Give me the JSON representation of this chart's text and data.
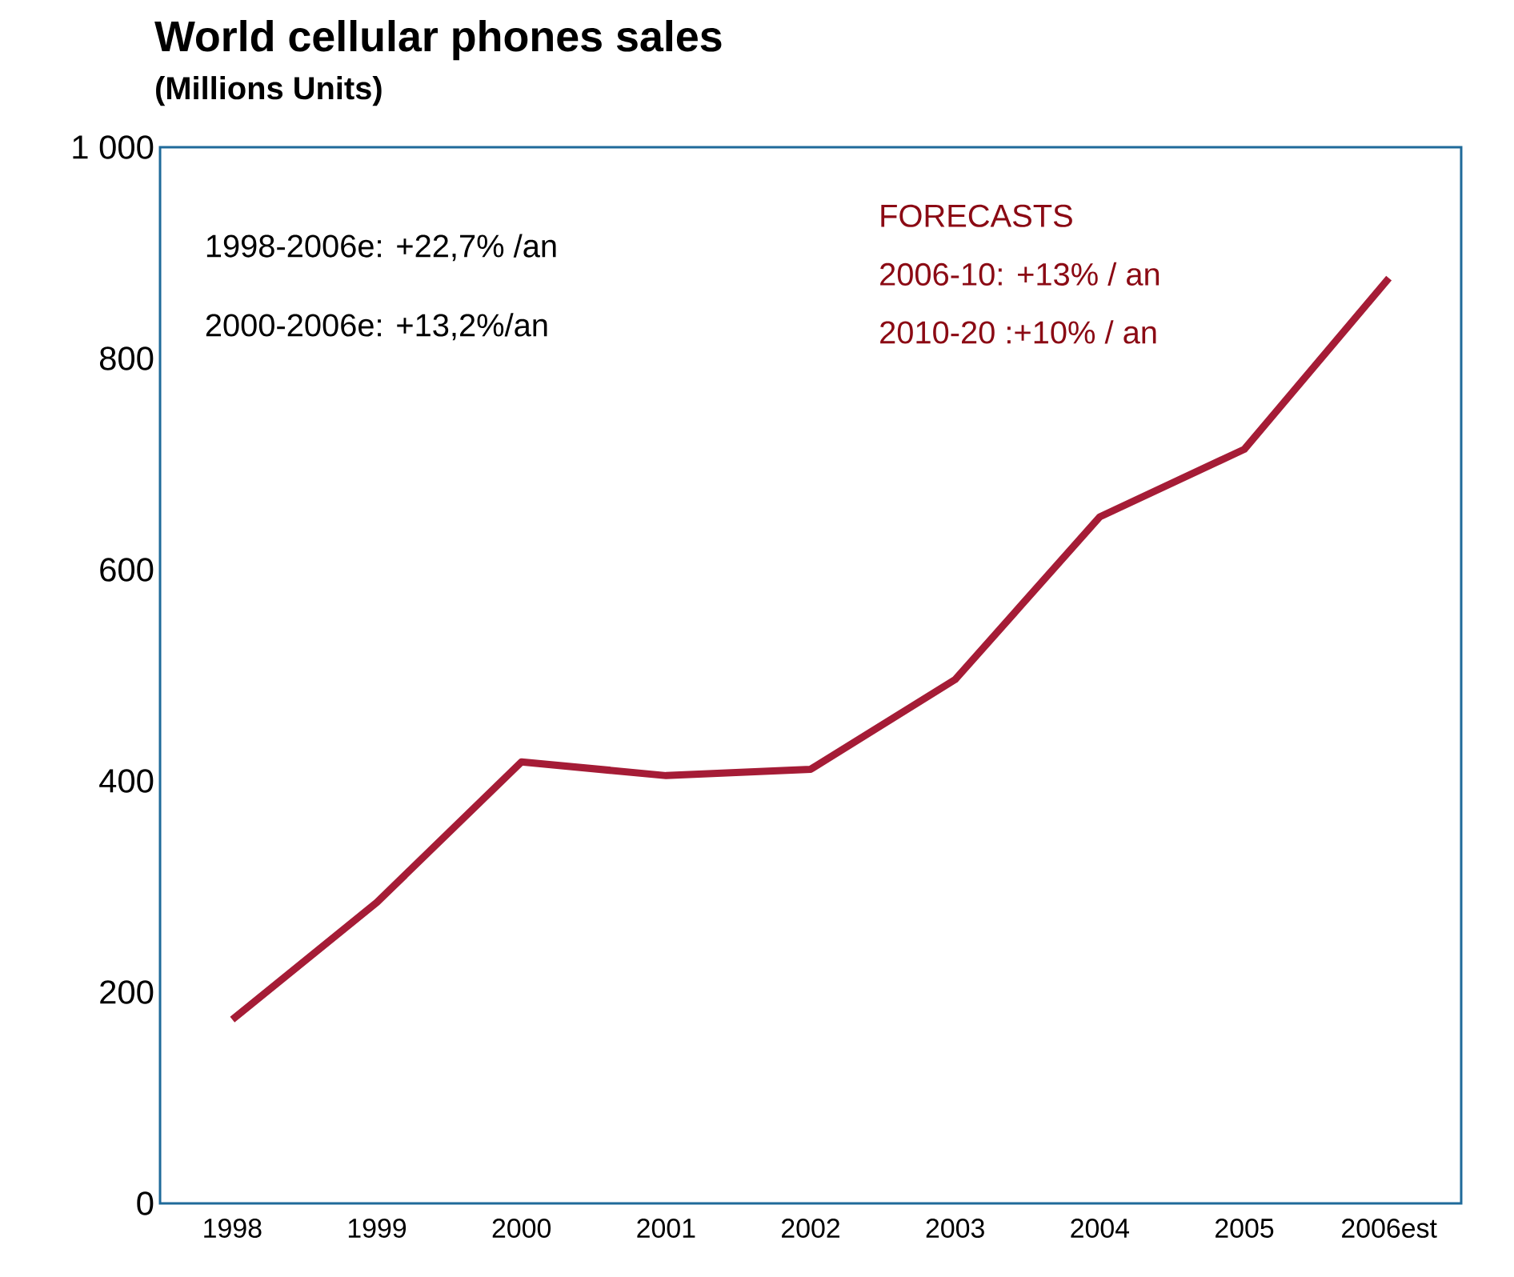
{
  "chart_data": {
    "type": "line",
    "title": "World cellular phones sales",
    "subtitle": "(Millions Units)",
    "categories": [
      "1998",
      "1999",
      "2000",
      "2001",
      "2002",
      "2003",
      "2004",
      "2005",
      "2006est"
    ],
    "series": [
      {
        "color": "#a51c36",
        "values": [
          174,
          285,
          418,
          405,
          411,
          496,
          650,
          714,
          876
        ]
      }
    ],
    "ylim": [
      0,
      1000
    ],
    "yticks": [
      0,
      200,
      400,
      600,
      800,
      {
        "value": 1000,
        "label": "1 000"
      }
    ],
    "annotations": [
      "1998-2006e: +22,7% /an",
      "2000-2006e: +13,2%/an",
      "FORECASTS",
      "2006-10: +13% / an",
      "2010-20 :+10% / an"
    ]
  }
}
